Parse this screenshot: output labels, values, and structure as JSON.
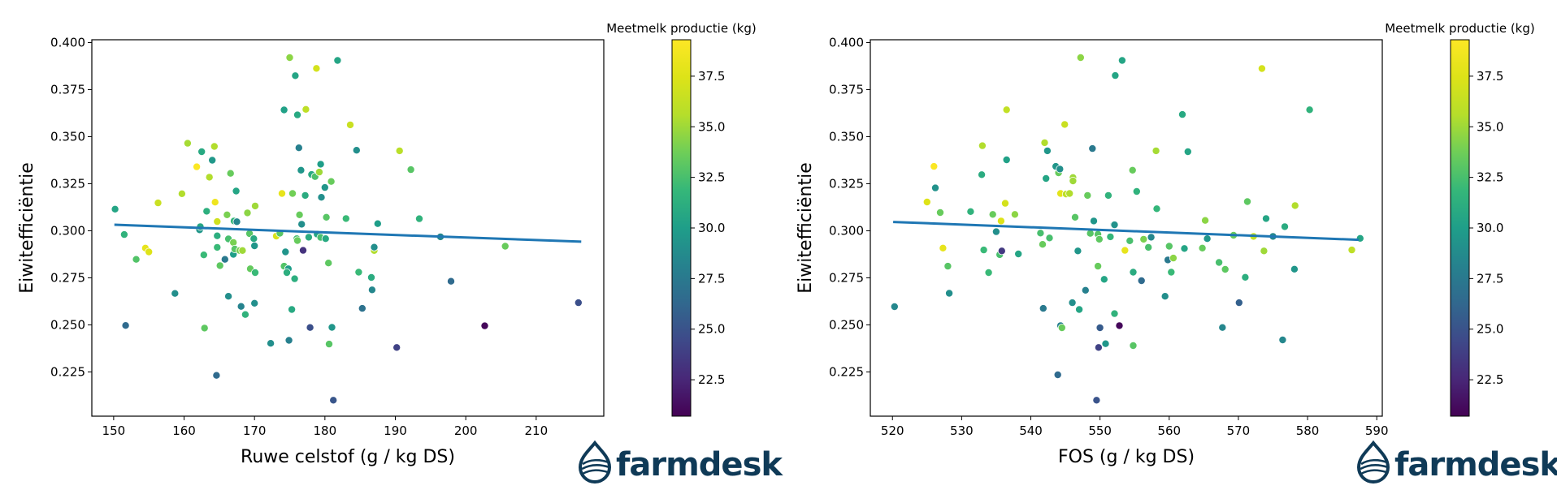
{
  "colorbar": {
    "title": "Meetmelk productie (kg)",
    "range": [
      20.7,
      39.3
    ],
    "ticks": [
      "22.5",
      "25.0",
      "27.5",
      "30.0",
      "32.5",
      "35.0",
      "37.5"
    ],
    "tick_values": [
      22.5,
      25.0,
      27.5,
      30.0,
      32.5,
      35.0,
      37.5
    ],
    "colormap": "viridis"
  },
  "logo": {
    "text": "farmdesk",
    "color": "#0f3a57"
  },
  "chart_data": [
    {
      "type": "scatter",
      "title": "",
      "xlabel": "Ruwe celstof (g / kg DS)",
      "ylabel": "Eiwitefficiëntie",
      "xlim": [
        146.9,
        219.6
      ],
      "ylim": [
        0.2015,
        0.4015
      ],
      "xticks": [
        "150",
        "160",
        "170",
        "180",
        "190",
        "200",
        "210"
      ],
      "xtick_values": [
        150,
        160,
        170,
        180,
        190,
        200,
        210
      ],
      "yticks": [
        "0.225",
        "0.250",
        "0.275",
        "0.300",
        "0.325",
        "0.350",
        "0.375",
        "0.400"
      ],
      "ytick_values": [
        0.225,
        0.25,
        0.275,
        0.3,
        0.325,
        0.35,
        0.375,
        0.4
      ],
      "grid": false,
      "trendline": {
        "x": [
          150.1,
          216.4
        ],
        "y": [
          0.3032,
          0.2942
        ],
        "color": "#1f77b4"
      },
      "points": [
        [
          150.2,
          0.3115,
          30.5
        ],
        [
          151.5,
          0.298,
          31.5
        ],
        [
          151.7,
          0.2497,
          26.5
        ],
        [
          153.2,
          0.2848,
          32.8
        ],
        [
          154.5,
          0.2908,
          38.0
        ],
        [
          155.0,
          0.2888,
          37.5
        ],
        [
          156.3,
          0.3148,
          36.5
        ],
        [
          158.7,
          0.2667,
          29.0
        ],
        [
          159.7,
          0.3197,
          35.5
        ],
        [
          160.5,
          0.3465,
          35.2
        ],
        [
          161.8,
          0.334,
          39.2
        ],
        [
          162.2,
          0.3005,
          29.5
        ],
        [
          162.3,
          0.3022,
          30.6
        ],
        [
          162.5,
          0.342,
          30.8
        ],
        [
          162.8,
          0.2872,
          32.0
        ],
        [
          162.9,
          0.2483,
          33.2
        ],
        [
          163.2,
          0.3104,
          31.3
        ],
        [
          163.6,
          0.3285,
          35.5
        ],
        [
          164.0,
          0.3375,
          29.6
        ],
        [
          164.3,
          0.3448,
          35.5
        ],
        [
          164.4,
          0.3152,
          38.5
        ],
        [
          164.6,
          0.2232,
          26.5
        ],
        [
          164.7,
          0.2973,
          31.2
        ],
        [
          164.7,
          0.3049,
          36.8
        ],
        [
          164.7,
          0.2912,
          32.0
        ],
        [
          165.1,
          0.2815,
          33.2
        ],
        [
          165.8,
          0.2848,
          27.5
        ],
        [
          166.1,
          0.3085,
          34.0
        ],
        [
          166.3,
          0.2652,
          29.0
        ],
        [
          166.3,
          0.2957,
          32.5
        ],
        [
          166.6,
          0.3305,
          33.5
        ],
        [
          167.1,
          0.3052,
          31.8
        ],
        [
          167.4,
          0.3211,
          30.5
        ],
        [
          167.5,
          0.3048,
          28.5
        ],
        [
          167.0,
          0.2938,
          34.0
        ],
        [
          167.0,
          0.2875,
          30.0
        ],
        [
          167.2,
          0.2903,
          33.0
        ],
        [
          167.9,
          0.2895,
          34.0
        ],
        [
          168.1,
          0.2598,
          28.2
        ],
        [
          168.3,
          0.2895,
          35.0
        ],
        [
          168.7,
          0.2555,
          31.5
        ],
        [
          169.0,
          0.3095,
          34.5
        ],
        [
          169.3,
          0.2985,
          33.0
        ],
        [
          169.4,
          0.2798,
          33.4
        ],
        [
          169.9,
          0.2958,
          30.8
        ],
        [
          170.0,
          0.2615,
          29.0
        ],
        [
          170.1,
          0.2778,
          32.0
        ],
        [
          170.1,
          0.3132,
          35.0
        ],
        [
          170.0,
          0.292,
          29.5
        ],
        [
          172.3,
          0.2402,
          29.0
        ],
        [
          173.1,
          0.2972,
          37.2
        ],
        [
          173.6,
          0.2987,
          33.0
        ],
        [
          173.9,
          0.3198,
          38.0
        ],
        [
          174.2,
          0.3642,
          30.2
        ],
        [
          174.2,
          0.2812,
          32.8
        ],
        [
          174.4,
          0.2888,
          29.4
        ],
        [
          174.8,
          0.2798,
          30.0
        ],
        [
          174.6,
          0.2778,
          31.2
        ],
        [
          174.9,
          0.2418,
          28.0
        ],
        [
          175.0,
          0.392,
          34.5
        ],
        [
          175.3,
          0.2582,
          30.8
        ],
        [
          175.4,
          0.3198,
          33.8
        ],
        [
          175.7,
          0.2745,
          31.2
        ],
        [
          175.8,
          0.3824,
          30.5
        ],
        [
          176.0,
          0.2958,
          32.5
        ],
        [
          176.1,
          0.2948,
          33.5
        ],
        [
          176.1,
          0.3616,
          30.8
        ],
        [
          176.3,
          0.3441,
          28.0
        ],
        [
          176.4,
          0.3085,
          33.5
        ],
        [
          176.6,
          0.3322,
          29.5
        ],
        [
          176.7,
          0.3035,
          29.0
        ],
        [
          176.9,
          0.2896,
          23.2
        ],
        [
          177.2,
          0.3188,
          31.0
        ],
        [
          177.3,
          0.3645,
          36.0
        ],
        [
          177.7,
          0.2966,
          31.0
        ],
        [
          177.9,
          0.2486,
          24.8
        ],
        [
          178.1,
          0.3299,
          30.8
        ],
        [
          178.6,
          0.3288,
          32.6
        ],
        [
          178.8,
          0.3863,
          37.0
        ],
        [
          178.9,
          0.2982,
          30.5
        ],
        [
          179.2,
          0.3312,
          35.0
        ],
        [
          179.4,
          0.2965,
          32.5
        ],
        [
          179.4,
          0.3354,
          30.0
        ],
        [
          179.5,
          0.3178,
          29.0
        ],
        [
          180.0,
          0.323,
          29.5
        ],
        [
          180.1,
          0.2958,
          30.8
        ],
        [
          180.2,
          0.3072,
          33.0
        ],
        [
          180.5,
          0.2829,
          33.2
        ],
        [
          180.6,
          0.2398,
          33.0
        ],
        [
          180.9,
          0.3262,
          33.5
        ],
        [
          181.0,
          0.2487,
          29.5
        ],
        [
          181.2,
          0.21,
          25.2
        ],
        [
          181.8,
          0.3905,
          30.5
        ],
        [
          183.0,
          0.3065,
          32.0
        ],
        [
          183.6,
          0.3563,
          36.5
        ],
        [
          184.5,
          0.3428,
          29.0
        ],
        [
          184.8,
          0.278,
          32.0
        ],
        [
          185.3,
          0.2588,
          27.0
        ],
        [
          186.6,
          0.2752,
          31.0
        ],
        [
          186.7,
          0.2686,
          28.5
        ],
        [
          187.0,
          0.2895,
          35.5
        ],
        [
          187.0,
          0.2913,
          29.0
        ],
        [
          187.5,
          0.3038,
          30.0
        ],
        [
          190.2,
          0.238,
          24.0
        ],
        [
          190.6,
          0.3425,
          35.8
        ],
        [
          192.2,
          0.3325,
          33.0
        ],
        [
          193.4,
          0.3064,
          31.5
        ],
        [
          196.4,
          0.2968,
          28.5
        ],
        [
          197.9,
          0.2732,
          26.5
        ],
        [
          202.7,
          0.2495,
          21.0
        ],
        [
          205.6,
          0.2918,
          33.5
        ],
        [
          216.0,
          0.2618,
          24.8
        ]
      ]
    },
    {
      "type": "scatter",
      "title": "",
      "xlabel": "FOS (g / kg DS)",
      "ylabel": "Eiwitefficiëntie",
      "xlim": [
        516.8,
        590.8
      ],
      "ylim": [
        0.2015,
        0.4015
      ],
      "xticks": [
        "520",
        "530",
        "540",
        "550",
        "560",
        "570",
        "580",
        "590"
      ],
      "xtick_values": [
        520,
        530,
        540,
        550,
        560,
        570,
        580,
        590
      ],
      "yticks": [
        "0.225",
        "0.250",
        "0.275",
        "0.300",
        "0.325",
        "0.350",
        "0.375",
        "0.400"
      ],
      "ytick_values": [
        0.225,
        0.25,
        0.275,
        0.3,
        0.325,
        0.35,
        0.375,
        0.4
      ],
      "grid": false,
      "trendline": {
        "x": [
          520.1,
          587.4
        ],
        "y": [
          0.3047,
          0.2952
        ],
        "color": "#1f77b4"
      },
      "points": [
        [
          520.3,
          0.2597,
          28.5
        ],
        [
          525.0,
          0.3153,
          37.5
        ],
        [
          526.0,
          0.3342,
          39.2
        ],
        [
          526.2,
          0.3228,
          29.2
        ],
        [
          526.9,
          0.3097,
          33.5
        ],
        [
          527.3,
          0.2908,
          38.0
        ],
        [
          528.0,
          0.2812,
          33.0
        ],
        [
          528.2,
          0.2668,
          29.0
        ],
        [
          531.3,
          0.3102,
          31.5
        ],
        [
          532.9,
          0.3298,
          31.0
        ],
        [
          533.0,
          0.3452,
          35.5
        ],
        [
          533.2,
          0.2898,
          32.0
        ],
        [
          533.9,
          0.2778,
          32.0
        ],
        [
          534.5,
          0.3087,
          33.5
        ],
        [
          535.0,
          0.2995,
          29.0
        ],
        [
          535.5,
          0.2873,
          32.5
        ],
        [
          535.7,
          0.3052,
          37.5
        ],
        [
          535.8,
          0.2893,
          23.5
        ],
        [
          536.3,
          0.3146,
          37.0
        ],
        [
          536.5,
          0.3643,
          36.2
        ],
        [
          536.5,
          0.3377,
          30.2
        ],
        [
          537.7,
          0.3087,
          34.5
        ],
        [
          538.2,
          0.2877,
          30.5
        ],
        [
          541.4,
          0.2988,
          32.5
        ],
        [
          541.7,
          0.2928,
          33.5
        ],
        [
          541.8,
          0.2588,
          27.5
        ],
        [
          542.0,
          0.3468,
          35.5
        ],
        [
          542.2,
          0.3278,
          30.5
        ],
        [
          542.4,
          0.3425,
          29.5
        ],
        [
          542.7,
          0.2962,
          32.5
        ],
        [
          543.6,
          0.3342,
          29.5
        ],
        [
          543.9,
          0.2235,
          26.5
        ],
        [
          544.0,
          0.3308,
          33.5
        ],
        [
          544.2,
          0.3328,
          29.0
        ],
        [
          544.3,
          0.3198,
          37.8
        ],
        [
          544.3,
          0.2496,
          28.0
        ],
        [
          544.5,
          0.2485,
          33.5
        ],
        [
          544.9,
          0.3565,
          36.5
        ],
        [
          545.1,
          0.3195,
          36.0
        ],
        [
          545.6,
          0.3198,
          35.5
        ],
        [
          546.0,
          0.2618,
          29.0
        ],
        [
          546.1,
          0.3283,
          35.0
        ],
        [
          546.1,
          0.3265,
          35.0
        ],
        [
          546.4,
          0.3072,
          33.0
        ],
        [
          546.8,
          0.2893,
          29.5
        ],
        [
          547.0,
          0.2582,
          30.5
        ],
        [
          547.2,
          0.392,
          34.5
        ],
        [
          547.9,
          0.2684,
          28.0
        ],
        [
          548.2,
          0.3188,
          33.5
        ],
        [
          548.6,
          0.2986,
          33.0
        ],
        [
          548.9,
          0.3437,
          27.5
        ],
        [
          549.1,
          0.3052,
          29.5
        ],
        [
          549.5,
          0.21,
          25.0
        ],
        [
          549.7,
          0.2812,
          33.5
        ],
        [
          549.7,
          0.2982,
          33.0
        ],
        [
          549.8,
          0.238,
          24.0
        ],
        [
          549.9,
          0.2955,
          33.2
        ],
        [
          550.0,
          0.2485,
          25.5
        ],
        [
          550.6,
          0.2742,
          30.5
        ],
        [
          550.8,
          0.24,
          29.5
        ],
        [
          551.2,
          0.3188,
          31.5
        ],
        [
          551.5,
          0.2968,
          31.8
        ],
        [
          552.0,
          0.3032,
          30.5
        ],
        [
          552.1,
          0.3032,
          29.2
        ],
        [
          552.1,
          0.256,
          31.5
        ],
        [
          552.2,
          0.3825,
          30.5
        ],
        [
          552.8,
          0.2496,
          21.0
        ],
        [
          553.2,
          0.3905,
          30.5
        ],
        [
          553.6,
          0.2896,
          38.0
        ],
        [
          554.3,
          0.2947,
          32.5
        ],
        [
          554.7,
          0.3322,
          33.5
        ],
        [
          554.8,
          0.278,
          31.0
        ],
        [
          554.8,
          0.239,
          33.0
        ],
        [
          555.3,
          0.3209,
          31.5
        ],
        [
          556.0,
          0.2735,
          26.5
        ],
        [
          556.3,
          0.2955,
          34.0
        ],
        [
          557.0,
          0.2912,
          32.5
        ],
        [
          557.4,
          0.2966,
          28.5
        ],
        [
          558.1,
          0.3425,
          35.2
        ],
        [
          558.2,
          0.3117,
          31.8
        ],
        [
          559.4,
          0.2652,
          29.0
        ],
        [
          559.8,
          0.2845,
          27.5
        ],
        [
          560.0,
          0.2918,
          33.0
        ],
        [
          560.3,
          0.278,
          32.0
        ],
        [
          560.6,
          0.2855,
          34.5
        ],
        [
          561.9,
          0.3618,
          30.8
        ],
        [
          562.2,
          0.2906,
          30.5
        ],
        [
          562.7,
          0.342,
          30.5
        ],
        [
          564.8,
          0.2908,
          33.5
        ],
        [
          565.2,
          0.3055,
          34.5
        ],
        [
          565.5,
          0.2958,
          29.5
        ],
        [
          567.2,
          0.2832,
          32.5
        ],
        [
          567.7,
          0.2486,
          28.5
        ],
        [
          568.1,
          0.2795,
          33.2
        ],
        [
          569.3,
          0.2976,
          33.5
        ],
        [
          570.1,
          0.2618,
          25.8
        ],
        [
          571.0,
          0.2753,
          31.2
        ],
        [
          571.3,
          0.3155,
          33.2
        ],
        [
          572.2,
          0.297,
          36.2
        ],
        [
          573.4,
          0.3862,
          37.0
        ],
        [
          573.7,
          0.2893,
          35.0
        ],
        [
          574.0,
          0.3065,
          30.5
        ],
        [
          575.0,
          0.297,
          28.5
        ],
        [
          576.4,
          0.242,
          28.5
        ],
        [
          576.7,
          0.3022,
          31.0
        ],
        [
          578.1,
          0.2796,
          29.5
        ],
        [
          578.2,
          0.3134,
          35.5
        ],
        [
          580.3,
          0.3643,
          31.5
        ],
        [
          586.4,
          0.2898,
          36.0
        ],
        [
          587.6,
          0.296,
          30.5
        ]
      ]
    }
  ]
}
